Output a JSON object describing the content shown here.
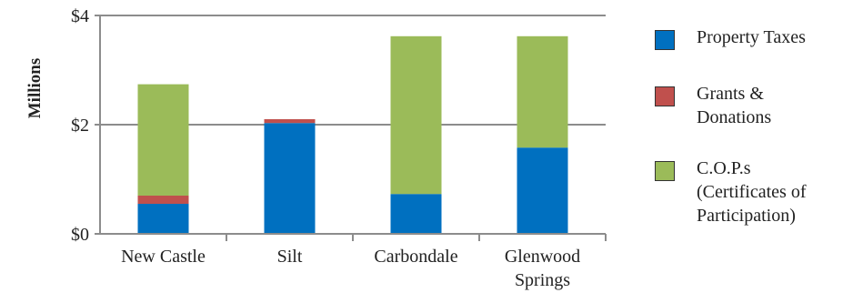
{
  "chart_data": {
    "type": "bar",
    "stacked": true,
    "ylabel": "Millions",
    "ylim": [
      0,
      4
    ],
    "yticks": [
      0,
      2,
      4
    ],
    "ytick_labels": [
      "$0",
      "$2",
      "$4"
    ],
    "categories": [
      "New Castle",
      "Silt",
      "Carbondale",
      "Glenwood\nSprings"
    ],
    "series": [
      {
        "name": "Property Taxes",
        "color": "#0070c0",
        "values": [
          0.55,
          2.03,
          0.73,
          1.58
        ]
      },
      {
        "name": "Grants &\n Donations",
        "color": "#c0504d",
        "values": [
          0.15,
          0.07,
          0,
          0
        ]
      },
      {
        "name": "C.O.P.s\n(Certificates of\nParticipation)",
        "color": "#9bbb59",
        "values": [
          2.04,
          0,
          2.89,
          2.04
        ]
      }
    ],
    "grid": true,
    "legend_position": "right"
  }
}
